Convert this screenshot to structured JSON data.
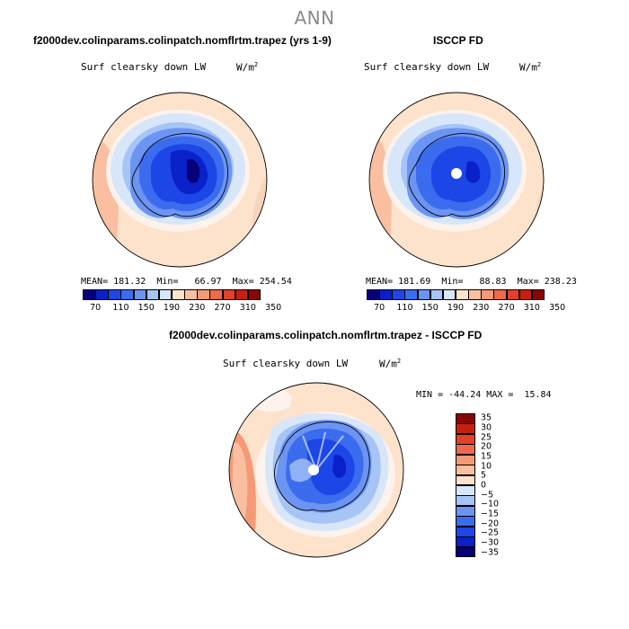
{
  "page": {
    "title": "ANN"
  },
  "panels": {
    "model": {
      "case_title": "f2000dev.colinparams.colinpatch.nomflrtm.trapez (yrs 1-9)",
      "variable": "Surf clearsky down LW",
      "units": "W/m",
      "units_sup": "2",
      "stats": {
        "mean_label": "MEAN=",
        "mean": "181.32",
        "min_label": "Min=",
        "min": "66.97",
        "max_label": "Max=",
        "max": "254.54"
      },
      "has_pole_hole": false
    },
    "obs": {
      "case_title": "ISCCP FD",
      "variable": "Surf clearsky down LW",
      "units": "W/m",
      "units_sup": "2",
      "stats": {
        "mean_label": "MEAN=",
        "mean": "181.69",
        "min_label": "Min=",
        "min": "88.83",
        "max_label": "Max=",
        "max": "238.23"
      },
      "has_pole_hole": true
    },
    "diff": {
      "case_title": "f2000dev.colinparams.colinpatch.nomflrtm.trapez - ISCCP FD",
      "variable": "Surf clearsky down LW",
      "units": "W/m",
      "units_sup": "2",
      "stats": {
        "min_label": "MIN =",
        "min": "-44.24",
        "max_label": "MAX =",
        "max": "15.84"
      },
      "has_pole_hole": true
    }
  },
  "colorbar_abs": {
    "colors": [
      "#08007a",
      "#0a20c8",
      "#1c46e6",
      "#3c6cee",
      "#6c94f2",
      "#a6c4f6",
      "#d8e6fa",
      "#fde2cc",
      "#f9bfa0",
      "#f59a76",
      "#ef6a4c",
      "#e3402a",
      "#c8200f",
      "#8a0604"
    ],
    "tick_labels": [
      "70",
      "110",
      "150",
      "190",
      "230",
      "270",
      "310",
      "350"
    ]
  },
  "colorbar_diff": {
    "colors": [
      "#08007a",
      "#0a20c8",
      "#1c46e6",
      "#3c6cee",
      "#6c94f2",
      "#a6c4f6",
      "#d8e6fa",
      "#fde2cc",
      "#f9bfa0",
      "#f59a76",
      "#ef6a4c",
      "#e3402a",
      "#c8200f",
      "#8a0604"
    ],
    "tick_labels": [
      "35",
      "30",
      "25",
      "20",
      "15",
      "10",
      "5",
      "0",
      "−5",
      "−10",
      "−15",
      "−20",
      "−25",
      "−30",
      "−35"
    ]
  }
}
